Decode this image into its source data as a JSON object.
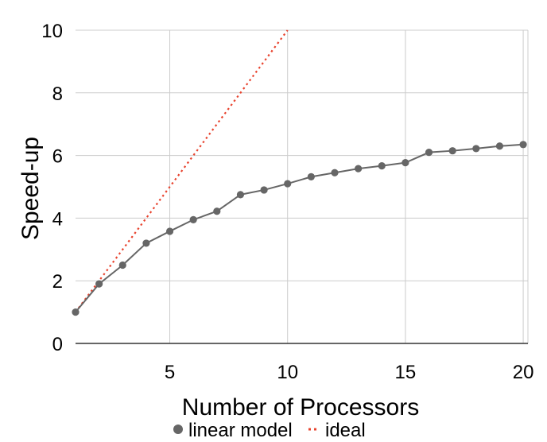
{
  "chart_data": {
    "type": "line",
    "title": "",
    "xlabel": "Number of Processors",
    "ylabel": "Speed-up",
    "xlim": [
      1,
      20.2
    ],
    "ylim": [
      0,
      10
    ],
    "xticks": [
      5,
      10,
      15,
      20
    ],
    "yticks": [
      0,
      2,
      4,
      6,
      8,
      10
    ],
    "grid": true,
    "legend_position": "bottom",
    "series": [
      {
        "name": "linear model",
        "style": "solid-markers",
        "color": "#666666",
        "x": [
          1,
          2,
          3,
          4,
          5,
          6,
          7,
          8,
          9,
          10,
          11,
          12,
          13,
          14,
          15,
          16,
          17,
          18,
          19,
          20
        ],
        "y": [
          1.0,
          1.9,
          2.5,
          3.2,
          3.58,
          3.95,
          4.22,
          4.75,
          4.9,
          5.1,
          5.32,
          5.45,
          5.58,
          5.67,
          5.77,
          6.1,
          6.15,
          6.22,
          6.3,
          6.35
        ]
      },
      {
        "name": "ideal",
        "style": "dotted",
        "color": "#e8432e",
        "x": [
          1,
          10
        ],
        "y": [
          1,
          10
        ]
      }
    ]
  }
}
